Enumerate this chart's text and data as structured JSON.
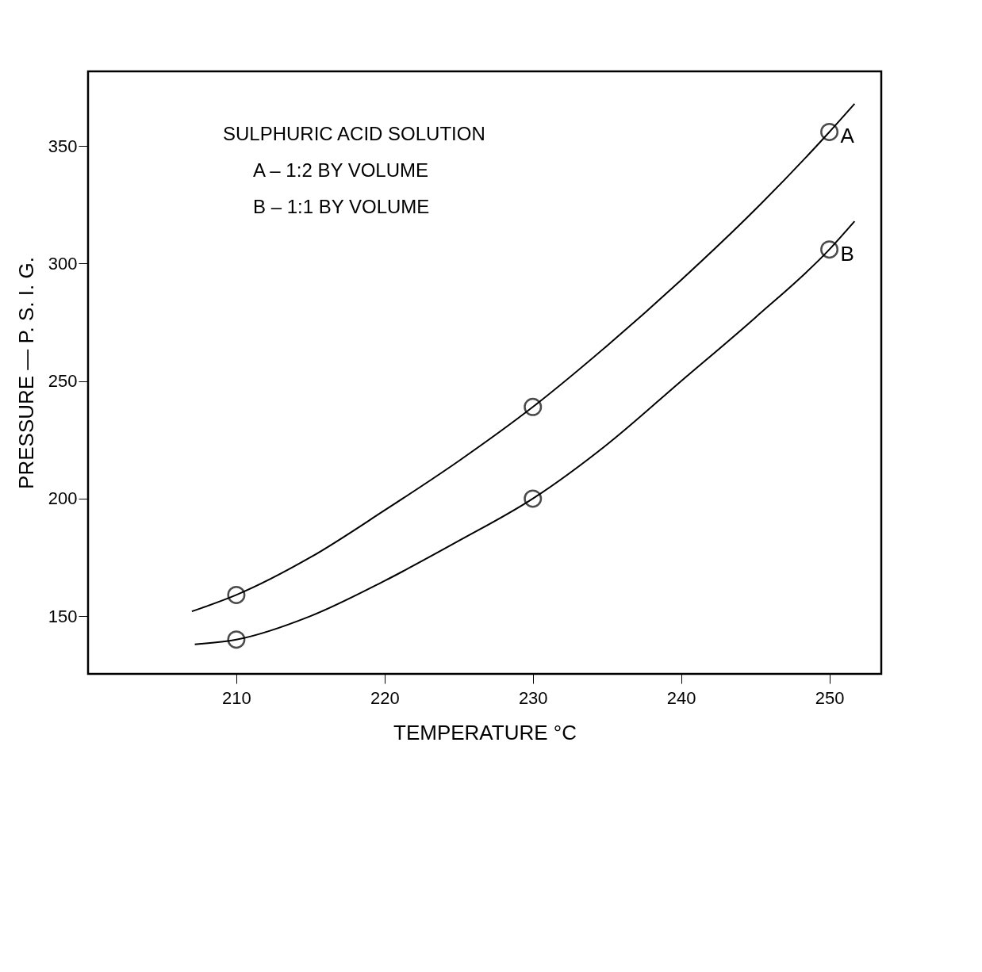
{
  "chart_data": {
    "type": "scatter",
    "xlabel": "TEMPERATURE °C",
    "ylabel": "PRESSURE — P. S. I. G.",
    "annotations": [
      "SULPHURIC ACID SOLUTION",
      "A – 1:2 BY VOLUME",
      "B – 1:1 BY VOLUME"
    ],
    "xlim": [
      200,
      253.5
    ],
    "ylim": [
      125.4,
      381.8
    ],
    "xticks": [
      210,
      220,
      230,
      240,
      250
    ],
    "yticks": [
      150,
      200,
      250,
      300,
      350
    ],
    "grid": false,
    "marker": "circle",
    "series": [
      {
        "name": "A",
        "color": "#000000",
        "x": [
          210,
          230,
          250
        ],
        "values": [
          159,
          239,
          356
        ]
      },
      {
        "name": "B",
        "color": "#000000",
        "x": [
          210,
          230,
          250
        ],
        "values": [
          140,
          200,
          306
        ]
      },
      {
        "type": "line",
        "color": "#000000",
        "marker": "none",
        "x": [
          207,
          210,
          215,
          220,
          225,
          230,
          235,
          240,
          245,
          250,
          251.7
        ],
        "values": [
          152,
          159,
          175,
          195,
          216,
          239,
          265,
          293,
          323,
          356,
          368
        ]
      },
      {
        "type": "line",
        "color": "#000000",
        "marker": "none",
        "x": [
          207.2,
          210,
          215,
          220,
          225,
          230,
          235,
          240,
          245,
          250,
          251.7
        ],
        "values": [
          138,
          140,
          150,
          165,
          182,
          200,
          223,
          250,
          277,
          306,
          318
        ]
      }
    ]
  }
}
